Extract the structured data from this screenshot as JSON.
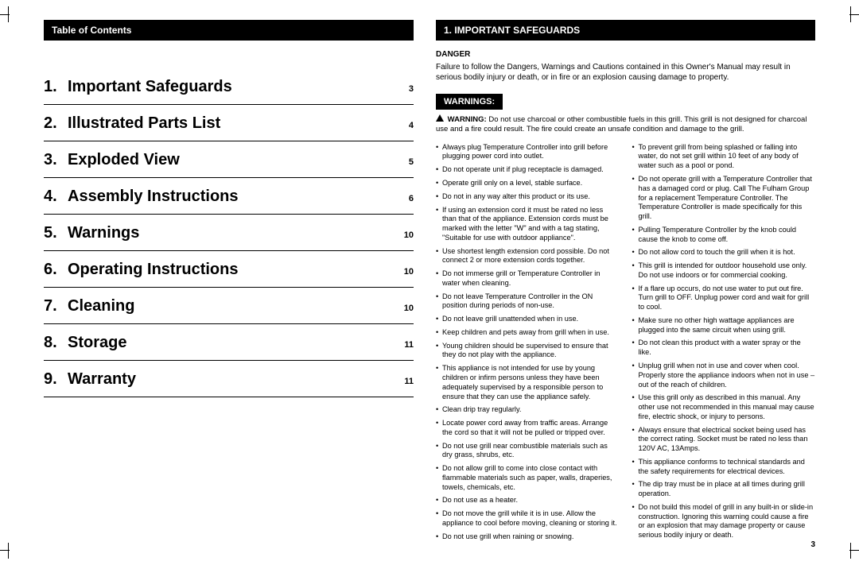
{
  "leftHeader": "Table of Contents",
  "toc": [
    {
      "num": "1.",
      "title": "Important Safeguards",
      "page": "3"
    },
    {
      "num": "2.",
      "title": "Illustrated Parts List",
      "page": "4"
    },
    {
      "num": "3.",
      "title": "Exploded View",
      "page": "5"
    },
    {
      "num": "4.",
      "title": "Assembly Instructions",
      "page": "6"
    },
    {
      "num": "5.",
      "title": "Warnings",
      "page": "10"
    },
    {
      "num": "6.",
      "title": "Operating Instructions",
      "page": "10"
    },
    {
      "num": "7.",
      "title": "Cleaning",
      "page": "10"
    },
    {
      "num": "8.",
      "title": "Storage",
      "page": "11"
    },
    {
      "num": "9.",
      "title": "Warranty",
      "page": "11"
    }
  ],
  "rightHeader": "1. IMPORTANT SAFEGUARDS",
  "dangerLabel": "DANGER",
  "dangerText": "Failure to follow the Dangers, Warnings and Cautions contained in this Owner's Manual may result in serious bodily injury or death, or in fire or an explosion causing damage to property.",
  "warningsLabel": "WARNINGS:",
  "warningLeadBold": "WARNING:",
  "warningLead": " Do not use charcoal or other combustible fuels in this grill. This grill is not designed for charcoal use and a fire could result. The fire could create an unsafe condition and damage to the grill.",
  "bulletsLeft": [
    "Always plug Temperature Controller into grill before plugging power cord into outlet.",
    "Do not operate unit if plug receptacle is damaged.",
    "Operate grill only on a level, stable surface.",
    "Do not in any way alter this product or its use.",
    "If using an extension cord it must be rated no less than that of the appliance. Extension cords must be marked with the letter \"W\" and with a tag stating, \"Suitable for use with outdoor appliance\".",
    "Use shortest length extension cord possible. Do not connect 2 or more extension cords together.",
    "Do not immerse grill or Temperature Controller in water when cleaning.",
    "Do not leave Temperature Controller in the ON position during periods of non-use.",
    "Do not leave grill unattended when in use.",
    "Keep children and pets away from grill when in use.",
    "Young children should be supervised to ensure that they do not play with the appliance.",
    "This appliance is not intended for use by young children or infirm persons unless they have been adequately supervised by a responsible person to ensure that they can use the appliance safely.",
    "Clean drip tray regularly.",
    "Locate power cord away from traffic areas. Arrange the cord so that it will not be pulled or tripped over.",
    "Do not use grill near combustible materials such as dry grass, shrubs, etc.",
    "Do not allow grill to come into close contact with flammable materials such as paper, walls, draperies, towels, chemicals, etc.",
    "Do not use as a heater.",
    "Do not move the grill while it is in use. Allow the appliance to cool before moving, cleaning or storing it.",
    "Do not use grill when raining or snowing."
  ],
  "bulletsRight": [
    "To prevent grill from being splashed or falling into water, do not set grill within 10 feet of any body of water such as a pool or pond.",
    "Do not operate grill with a Temperature Controller that has a damaged cord or plug. Call The Fulham Group for a replacement Temperature Controller. The Temperature Controller is made specifically for this grill.",
    "Pulling Temperature Controller by the knob could cause the knob to come off.",
    "Do not allow cord to touch the grill when it is hot.",
    "This grill is intended for outdoor household use only. Do not use indoors or for commercial cooking.",
    "If a flare up occurs, do not use water to put out fire. Turn grill to OFF. Unplug power cord and wait for grill to cool.",
    "Make sure no other high wattage appliances are plugged into the same circuit when using grill.",
    "Do not clean this product with a water spray or the like.",
    "Unplug grill when not in use and cover when cool. Properly store the appliance indoors when not in use – out of the reach of children.",
    "Use this grill only as described in this manual. Any other use not recommended in this manual may cause fire, electric shock, or injury to persons.",
    "Always ensure that electrical socket being used has the correct rating. Socket must be rated no less than 120V AC, 13Amps.",
    "This appliance conforms to technical standards and the safety requirements for electrical devices.",
    "The dip tray must be in place at all times during grill operation.",
    "Do not build this model of grill in any built-in or slide-in construction. Ignoring this warning could cause a fire or an explosion that may damage property or cause serious bodily injury or death."
  ],
  "pageNumber": "3"
}
